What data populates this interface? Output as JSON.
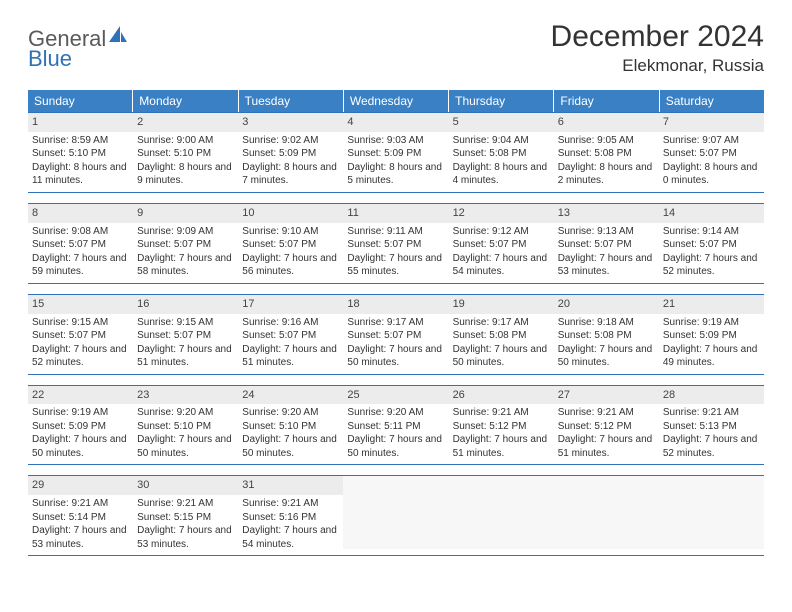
{
  "logo": {
    "general": "General",
    "blue": "Blue"
  },
  "title": "December 2024",
  "location": "Elekmonar, Russia",
  "colors": {
    "header_bg": "#3a80c4",
    "header_text": "#ffffff",
    "border": "#2f72b8",
    "daynum_bg": "#ececec",
    "text": "#333333",
    "logo_gray": "#5a5a5a",
    "logo_blue": "#2f72b8"
  },
  "typography": {
    "title_fontsize": 30,
    "location_fontsize": 17,
    "dayheader_fontsize": 12,
    "cell_fontsize": 10
  },
  "day_labels": [
    "Sunday",
    "Monday",
    "Tuesday",
    "Wednesday",
    "Thursday",
    "Friday",
    "Saturday"
  ],
  "weeks": [
    [
      {
        "n": "1",
        "sunrise": "8:59 AM",
        "sunset": "5:10 PM",
        "daylight": "8 hours and 11 minutes."
      },
      {
        "n": "2",
        "sunrise": "9:00 AM",
        "sunset": "5:10 PM",
        "daylight": "8 hours and 9 minutes."
      },
      {
        "n": "3",
        "sunrise": "9:02 AM",
        "sunset": "5:09 PM",
        "daylight": "8 hours and 7 minutes."
      },
      {
        "n": "4",
        "sunrise": "9:03 AM",
        "sunset": "5:09 PM",
        "daylight": "8 hours and 5 minutes."
      },
      {
        "n": "5",
        "sunrise": "9:04 AM",
        "sunset": "5:08 PM",
        "daylight": "8 hours and 4 minutes."
      },
      {
        "n": "6",
        "sunrise": "9:05 AM",
        "sunset": "5:08 PM",
        "daylight": "8 hours and 2 minutes."
      },
      {
        "n": "7",
        "sunrise": "9:07 AM",
        "sunset": "5:07 PM",
        "daylight": "8 hours and 0 minutes."
      }
    ],
    [
      {
        "n": "8",
        "sunrise": "9:08 AM",
        "sunset": "5:07 PM",
        "daylight": "7 hours and 59 minutes."
      },
      {
        "n": "9",
        "sunrise": "9:09 AM",
        "sunset": "5:07 PM",
        "daylight": "7 hours and 58 minutes."
      },
      {
        "n": "10",
        "sunrise": "9:10 AM",
        "sunset": "5:07 PM",
        "daylight": "7 hours and 56 minutes."
      },
      {
        "n": "11",
        "sunrise": "9:11 AM",
        "sunset": "5:07 PM",
        "daylight": "7 hours and 55 minutes."
      },
      {
        "n": "12",
        "sunrise": "9:12 AM",
        "sunset": "5:07 PM",
        "daylight": "7 hours and 54 minutes."
      },
      {
        "n": "13",
        "sunrise": "9:13 AM",
        "sunset": "5:07 PM",
        "daylight": "7 hours and 53 minutes."
      },
      {
        "n": "14",
        "sunrise": "9:14 AM",
        "sunset": "5:07 PM",
        "daylight": "7 hours and 52 minutes."
      }
    ],
    [
      {
        "n": "15",
        "sunrise": "9:15 AM",
        "sunset": "5:07 PM",
        "daylight": "7 hours and 52 minutes."
      },
      {
        "n": "16",
        "sunrise": "9:15 AM",
        "sunset": "5:07 PM",
        "daylight": "7 hours and 51 minutes."
      },
      {
        "n": "17",
        "sunrise": "9:16 AM",
        "sunset": "5:07 PM",
        "daylight": "7 hours and 51 minutes."
      },
      {
        "n": "18",
        "sunrise": "9:17 AM",
        "sunset": "5:07 PM",
        "daylight": "7 hours and 50 minutes."
      },
      {
        "n": "19",
        "sunrise": "9:17 AM",
        "sunset": "5:08 PM",
        "daylight": "7 hours and 50 minutes."
      },
      {
        "n": "20",
        "sunrise": "9:18 AM",
        "sunset": "5:08 PM",
        "daylight": "7 hours and 50 minutes."
      },
      {
        "n": "21",
        "sunrise": "9:19 AM",
        "sunset": "5:09 PM",
        "daylight": "7 hours and 49 minutes."
      }
    ],
    [
      {
        "n": "22",
        "sunrise": "9:19 AM",
        "sunset": "5:09 PM",
        "daylight": "7 hours and 50 minutes."
      },
      {
        "n": "23",
        "sunrise": "9:20 AM",
        "sunset": "5:10 PM",
        "daylight": "7 hours and 50 minutes."
      },
      {
        "n": "24",
        "sunrise": "9:20 AM",
        "sunset": "5:10 PM",
        "daylight": "7 hours and 50 minutes."
      },
      {
        "n": "25",
        "sunrise": "9:20 AM",
        "sunset": "5:11 PM",
        "daylight": "7 hours and 50 minutes."
      },
      {
        "n": "26",
        "sunrise": "9:21 AM",
        "sunset": "5:12 PM",
        "daylight": "7 hours and 51 minutes."
      },
      {
        "n": "27",
        "sunrise": "9:21 AM",
        "sunset": "5:12 PM",
        "daylight": "7 hours and 51 minutes."
      },
      {
        "n": "28",
        "sunrise": "9:21 AM",
        "sunset": "5:13 PM",
        "daylight": "7 hours and 52 minutes."
      }
    ],
    [
      {
        "n": "29",
        "sunrise": "9:21 AM",
        "sunset": "5:14 PM",
        "daylight": "7 hours and 53 minutes."
      },
      {
        "n": "30",
        "sunrise": "9:21 AM",
        "sunset": "5:15 PM",
        "daylight": "7 hours and 53 minutes."
      },
      {
        "n": "31",
        "sunrise": "9:21 AM",
        "sunset": "5:16 PM",
        "daylight": "7 hours and 54 minutes."
      },
      null,
      null,
      null,
      null
    ]
  ],
  "labels": {
    "sunrise_prefix": "Sunrise: ",
    "sunset_prefix": "Sunset: ",
    "daylight_prefix": "Daylight: "
  }
}
